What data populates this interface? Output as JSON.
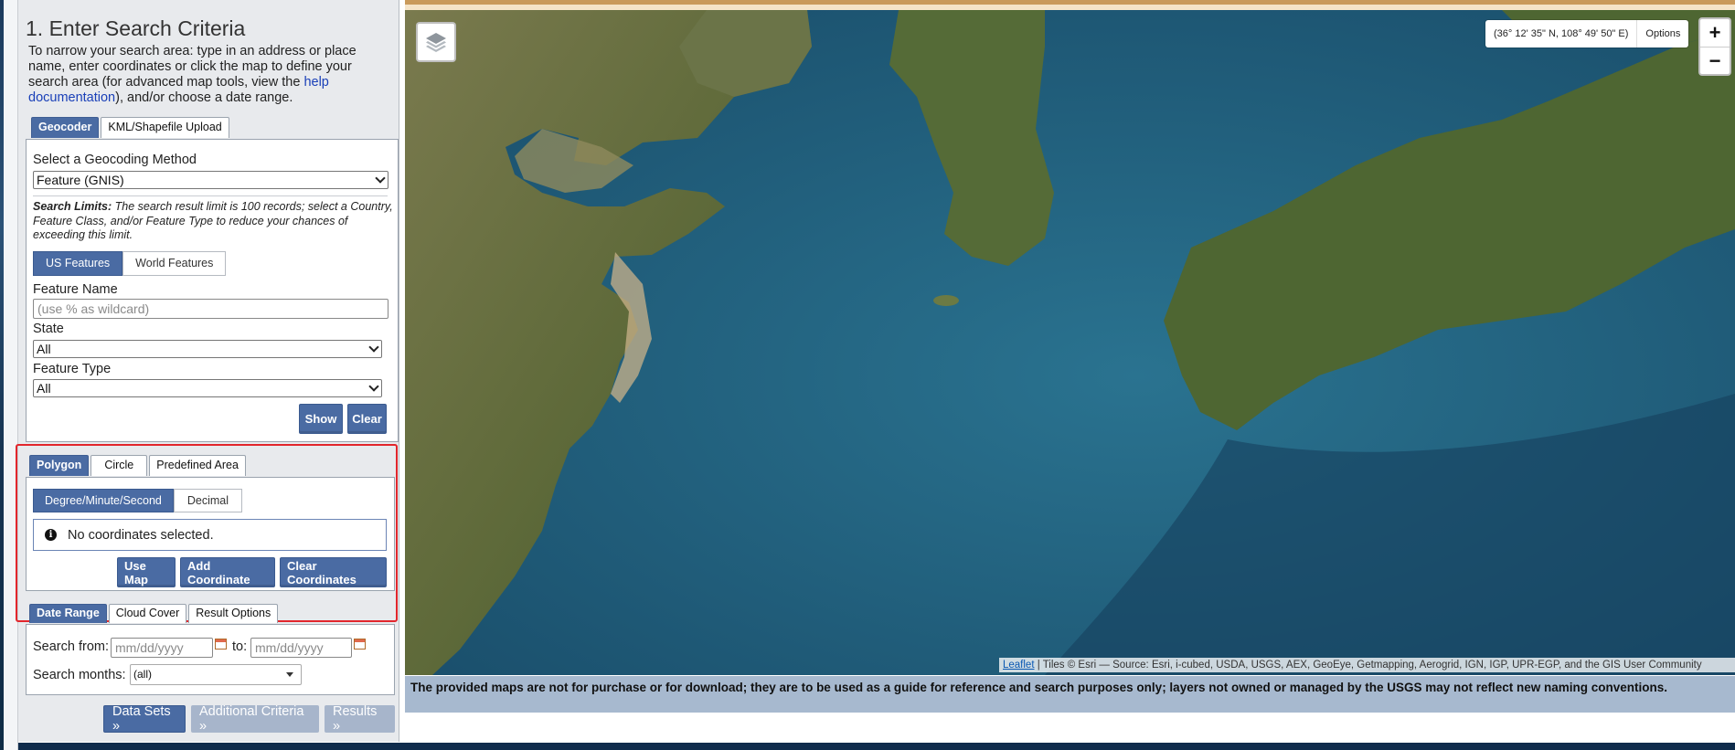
{
  "panel": {
    "title": "1. Enter Search Criteria",
    "intro_before": "To narrow your search area: type in an address or place name, enter coordinates or click the map to define your search area (for advanced map tools, view the ",
    "intro_link": "help documentation",
    "intro_after": "), and/or choose a date range."
  },
  "geocoder": {
    "tabs": [
      "Geocoder",
      "KML/Shapefile Upload"
    ],
    "method_label": "Select a Geocoding Method",
    "method_value": "Feature (GNIS)",
    "limits_bold": "Search Limits:",
    "limits_text": " The search result limit is 100 records; select a Country, Feature Class, and/or Feature Type to reduce your chances of exceeding this limit.",
    "feature_tabs": [
      "US Features",
      "World Features"
    ],
    "feature_name_label": "Feature Name",
    "feature_name_placeholder": "(use % as wildcard)",
    "state_label": "State",
    "state_value": "All",
    "feature_type_label": "Feature Type",
    "feature_type_value": "All",
    "show_label": "Show",
    "clear_label": "Clear"
  },
  "area": {
    "tabs": [
      "Polygon",
      "Circle",
      "Predefined Area"
    ],
    "format_tabs": [
      "Degree/Minute/Second",
      "Decimal"
    ],
    "notice": "No coordinates selected.",
    "use_map": "Use Map",
    "add_coordinate": "Add Coordinate",
    "clear_coordinates": "Clear Coordinates"
  },
  "dates": {
    "tabs": [
      "Date Range",
      "Cloud Cover",
      "Result Options"
    ],
    "from_label": "Search from:",
    "from_placeholder": "mm/dd/yyyy",
    "to_label": "to:",
    "to_placeholder": "mm/dd/yyyy",
    "months_label": "Search months:",
    "months_value": "(all)"
  },
  "nav": {
    "data_sets": "Data Sets »",
    "additional": "Additional Criteria »",
    "results": "Results »"
  },
  "map": {
    "coords": "(36° 12' 35\" N, 108° 49' 50\" E)",
    "options": "Options",
    "zoom_in": "+",
    "zoom_out": "−",
    "attribution_link": "Leaflet",
    "attribution_text": " | Tiles © Esri — Source: Esri, i-cubed, USDA, USGS, AEX, GeoEye, Getmapping, Aerogrid, IGN, IGP, UPR-EGP, and the GIS User Community",
    "disclaimer": "The provided maps are not for purchase or for download; they are to be used as a guide for reference and search purposes only; layers not owned or managed by the USGS may not reflect new naming conventions."
  },
  "colors": {
    "accent": "#4a6ba3",
    "highlight": "#e2262c",
    "disclaimer_bg": "#a7b9cf"
  }
}
